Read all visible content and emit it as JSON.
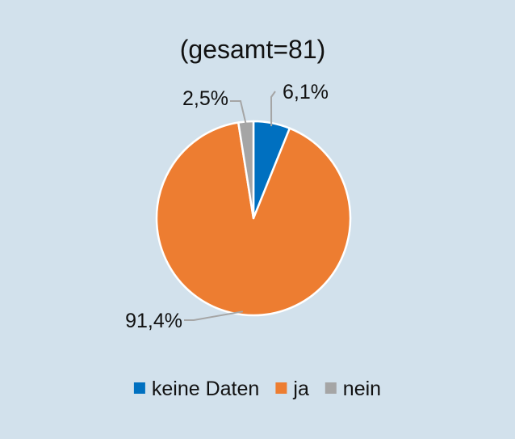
{
  "chart_data": {
    "type": "pie",
    "title": "(gesamt=81)",
    "slices": [
      {
        "label": "keine Daten",
        "value": 6.1,
        "display": "6,1%",
        "color": "#0070c0"
      },
      {
        "label": "ja",
        "value": 91.4,
        "display": "91,4%",
        "color": "#ed7d31"
      },
      {
        "label": "nein",
        "value": 2.5,
        "display": "2,5%",
        "color": "#a5a5a5"
      }
    ],
    "start_angle_deg": 0,
    "direction": "clockwise",
    "legend": {
      "position": "bottom",
      "entries": [
        "keine Daten",
        "ja",
        "nein"
      ]
    },
    "leader_line_color": "#a5a5a5"
  }
}
